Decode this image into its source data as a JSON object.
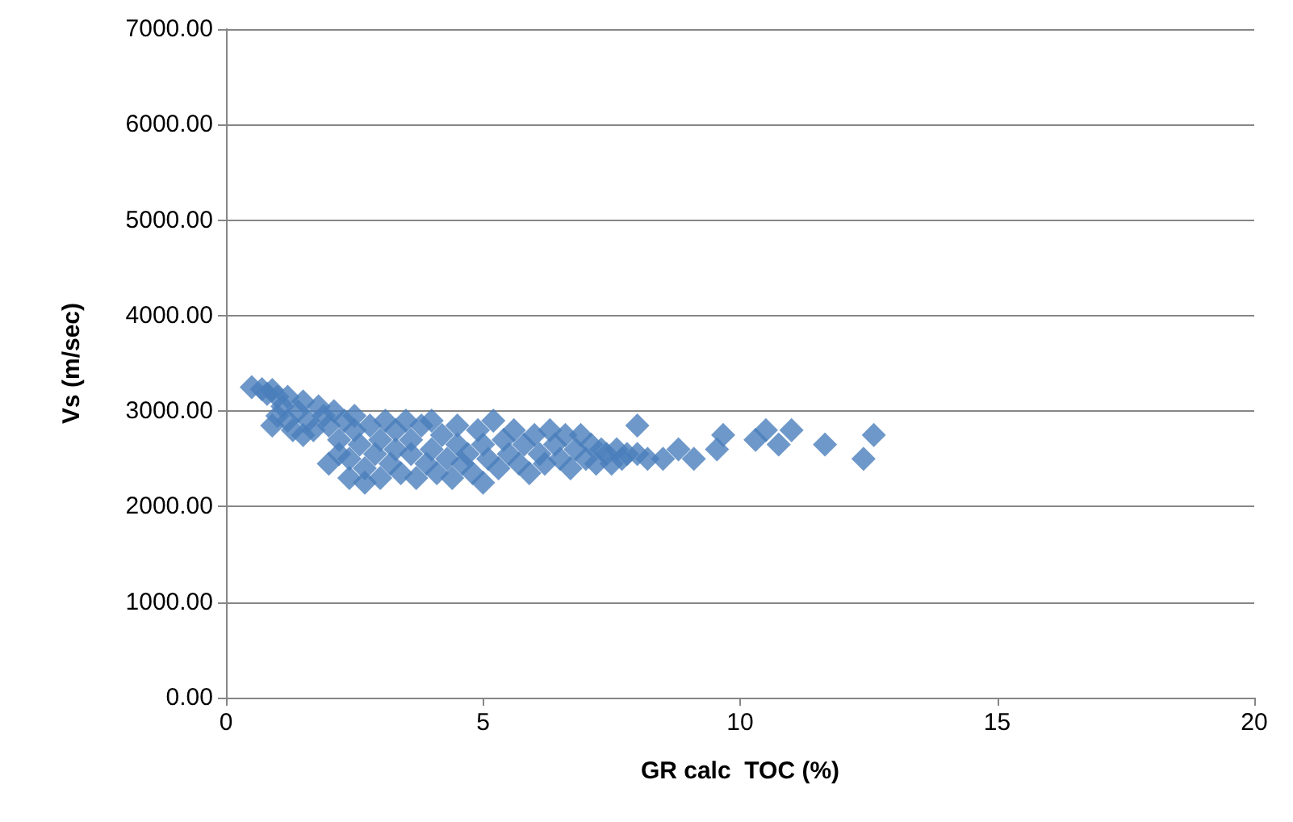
{
  "chart_data": {
    "type": "scatter",
    "xlabel": "GR calc  TOC (%)",
    "ylabel": "Vs (m/sec)",
    "xlim": [
      0,
      20
    ],
    "xticks": [
      0,
      5,
      10,
      15,
      20
    ],
    "ylim": [
      0,
      7000
    ],
    "yticks": [
      {
        "value": 0,
        "label": "0.00"
      },
      {
        "value": 1000,
        "label": "1000.00"
      },
      {
        "value": 2000,
        "label": "2000.00"
      },
      {
        "value": 3000,
        "label": "3000.00"
      },
      {
        "value": 4000,
        "label": "4000.00"
      },
      {
        "value": 5000,
        "label": "5000.00"
      },
      {
        "value": 6000,
        "label": "6000.00"
      },
      {
        "value": 7000,
        "label": "7000.00"
      }
    ],
    "grid": "y",
    "marker": "diamond",
    "series": [
      {
        "color": "#4a7ebb",
        "x": [
          0.5,
          0.7,
          0.8,
          0.9,
          1.0,
          0.9,
          1.0,
          1.1,
          1.2,
          1.2,
          1.3,
          1.4,
          1.5,
          1.5,
          1.6,
          1.7,
          1.8,
          1.9,
          2.0,
          2.0,
          2.1,
          2.2,
          2.2,
          2.3,
          2.4,
          2.4,
          2.5,
          2.5,
          2.6,
          2.7,
          2.7,
          2.8,
          2.9,
          3.0,
          3.0,
          3.1,
          3.2,
          3.3,
          3.3,
          3.4,
          3.5,
          3.6,
          3.6,
          3.7,
          3.8,
          3.9,
          4.0,
          4.0,
          4.1,
          4.2,
          4.3,
          4.4,
          4.5,
          4.5,
          4.6,
          4.7,
          4.8,
          4.9,
          5.0,
          5.0,
          5.1,
          5.2,
          5.3,
          5.4,
          5.5,
          5.6,
          5.7,
          5.8,
          5.9,
          6.0,
          6.1,
          6.2,
          6.3,
          6.4,
          6.5,
          6.6,
          6.7,
          6.8,
          6.9,
          7.0,
          7.1,
          7.2,
          7.3,
          7.4,
          7.5,
          7.6,
          7.7,
          7.8,
          8.0,
          8.0,
          8.2,
          8.5,
          8.8,
          9.1,
          9.55,
          9.67,
          10.3,
          10.5,
          10.75,
          11.0,
          11.65,
          12.4,
          12.6
        ],
        "values": [
          3250,
          3230,
          3180,
          3220,
          3150,
          2850,
          2950,
          3050,
          2900,
          3150,
          2800,
          3000,
          2750,
          3100,
          2900,
          2800,
          3050,
          2950,
          2850,
          2450,
          3000,
          2700,
          2550,
          2900,
          2300,
          2500,
          2800,
          2950,
          2650,
          2400,
          2250,
          2850,
          2550,
          2300,
          2700,
          2900,
          2450,
          2600,
          2800,
          2350,
          2900,
          2550,
          2700,
          2300,
          2850,
          2450,
          2600,
          2900,
          2350,
          2750,
          2500,
          2300,
          2850,
          2650,
          2450,
          2550,
          2350,
          2800,
          2250,
          2650,
          2500,
          2900,
          2400,
          2700,
          2550,
          2800,
          2450,
          2650,
          2350,
          2750,
          2550,
          2450,
          2800,
          2650,
          2500,
          2750,
          2400,
          2600,
          2750,
          2500,
          2650,
          2450,
          2600,
          2550,
          2450,
          2600,
          2500,
          2550,
          2850,
          2550,
          2500,
          2500,
          2600,
          2500,
          2600,
          2750,
          2700,
          2800,
          2650,
          2800,
          2650,
          2500,
          2750
        ]
      }
    ]
  }
}
